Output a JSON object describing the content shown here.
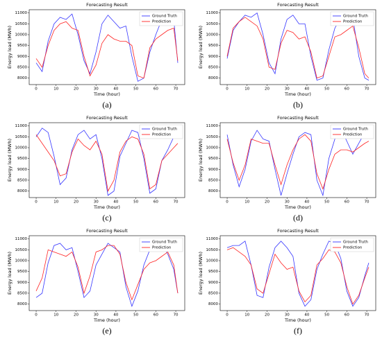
{
  "chart_data": [
    {
      "type": "line",
      "label": "(a)",
      "title": "Forecasting Result",
      "xlabel": "Time (hour)",
      "ylabel": "Energy load (MWh)",
      "x": [
        0,
        3,
        6,
        9,
        12,
        15,
        18,
        21,
        24,
        27,
        30,
        33,
        36,
        39,
        42,
        45,
        48,
        51,
        54,
        57,
        60,
        63,
        66,
        69,
        71
      ],
      "series": [
        {
          "name": "Ground Truth",
          "color": "#3333ff",
          "values": [
            8700,
            8300,
            9700,
            10500,
            10800,
            10700,
            10950,
            10000,
            8800,
            8200,
            9200,
            10500,
            10900,
            10600,
            10300,
            10400,
            9000,
            7850,
            8000,
            9200,
            10000,
            10700,
            10700,
            10700,
            8700
          ]
        },
        {
          "name": "Prediction",
          "color": "#ff2222",
          "values": [
            8900,
            8500,
            9500,
            10200,
            10500,
            10600,
            10300,
            10200,
            9000,
            8100,
            8600,
            9600,
            10000,
            9800,
            9700,
            9700,
            9500,
            8100,
            8000,
            9400,
            9800,
            10000,
            10200,
            10300,
            8800
          ]
        }
      ],
      "xlim": [
        -3.5,
        74.5
      ],
      "xticks": [
        0,
        10,
        20,
        30,
        40,
        50,
        60,
        70
      ],
      "ylim": [
        7700,
        11150
      ],
      "yticks": [
        8000,
        8500,
        9000,
        9500,
        10000,
        10500,
        11000
      ],
      "legend": "upper right"
    },
    {
      "type": "line",
      "label": "(b)",
      "title": "Forecasting Result",
      "xlabel": "Time (hour)",
      "ylabel": "Energy load (MWh)",
      "x": [
        0,
        3,
        6,
        9,
        12,
        15,
        18,
        21,
        24,
        27,
        30,
        33,
        36,
        39,
        42,
        45,
        48,
        51,
        54,
        57,
        60,
        63,
        66,
        69,
        71
      ],
      "series": [
        {
          "name": "Ground Truth",
          "color": "#3333ff",
          "values": [
            8900,
            10200,
            10600,
            10900,
            10800,
            11000,
            10000,
            8700,
            8200,
            9800,
            10700,
            10900,
            10500,
            10500,
            9000,
            7900,
            8000,
            9300,
            10300,
            10800,
            10700,
            10800,
            9000,
            8000,
            7900
          ]
        },
        {
          "name": "Prediction",
          "color": "#ff2222",
          "values": [
            9000,
            10300,
            10600,
            10800,
            10600,
            10400,
            9800,
            8500,
            8400,
            9600,
            10200,
            10100,
            9800,
            9900,
            9200,
            8000,
            8100,
            9000,
            9900,
            10000,
            10200,
            10400,
            9400,
            8200,
            8000
          ]
        }
      ],
      "xlim": [
        -3.5,
        74.5
      ],
      "xticks": [
        0,
        10,
        20,
        30,
        40,
        50,
        60,
        70
      ],
      "ylim": [
        7700,
        11150
      ],
      "yticks": [
        8000,
        8500,
        9000,
        9500,
        10000,
        10500,
        11000
      ],
      "legend": "upper right"
    },
    {
      "type": "line",
      "label": "(c)",
      "title": "Forecasting Result",
      "xlabel": "Time (hour)",
      "ylabel": "Energy load (MWh)",
      "x": [
        0,
        3,
        6,
        9,
        12,
        15,
        18,
        21,
        24,
        27,
        30,
        33,
        36,
        39,
        42,
        45,
        48,
        51,
        54,
        57,
        60,
        63,
        66,
        69,
        71
      ],
      "series": [
        {
          "name": "Ground Truth",
          "color": "#3333ff",
          "values": [
            10500,
            10900,
            10700,
            9600,
            8300,
            8600,
            9900,
            10600,
            10800,
            10400,
            10600,
            9500,
            7800,
            8000,
            9600,
            10200,
            10800,
            10700,
            9500,
            7900,
            8100,
            9400,
            9900,
            10500,
            10800
          ]
        },
        {
          "name": "Prediction",
          "color": "#ff2222",
          "values": [
            10600,
            10200,
            9800,
            9400,
            8700,
            8800,
            9800,
            10400,
            10100,
            9900,
            10300,
            9700,
            8000,
            8500,
            9800,
            10300,
            10500,
            10400,
            9700,
            8100,
            8300,
            9400,
            9700,
            10000,
            10200
          ]
        }
      ],
      "xlim": [
        -3.5,
        74.5
      ],
      "xticks": [
        0,
        10,
        20,
        30,
        40,
        50,
        60,
        70
      ],
      "ylim": [
        7700,
        11150
      ],
      "yticks": [
        8000,
        8500,
        9000,
        9500,
        10000,
        10500,
        11000
      ],
      "legend": "upper right"
    },
    {
      "type": "line",
      "label": "(d)",
      "title": "Forecasting Result",
      "xlabel": "Time (hour)",
      "ylabel": "Energy load (MWh)",
      "x": [
        0,
        3,
        6,
        9,
        12,
        15,
        18,
        21,
        24,
        27,
        30,
        33,
        36,
        39,
        42,
        45,
        48,
        51,
        54,
        57,
        60,
        63,
        66,
        69,
        71
      ],
      "series": [
        {
          "name": "Ground Truth",
          "color": "#3333ff",
          "values": [
            10600,
            9200,
            8200,
            9000,
            10300,
            10800,
            10400,
            10300,
            9000,
            7800,
            8800,
            9700,
            10500,
            10700,
            10600,
            8500,
            7800,
            9500,
            10400,
            10900,
            10300,
            9700,
            10200,
            10700,
            10600
          ]
        },
        {
          "name": "Prediction",
          "color": "#ff2222",
          "values": [
            10400,
            9300,
            8500,
            9200,
            10400,
            10300,
            10200,
            10200,
            9200,
            8300,
            9200,
            9900,
            10400,
            10600,
            10300,
            8800,
            8100,
            9000,
            9700,
            9900,
            9900,
            9800,
            10000,
            10200,
            10300
          ]
        }
      ],
      "xlim": [
        -3.5,
        74.5
      ],
      "xticks": [
        0,
        10,
        20,
        30,
        40,
        50,
        60,
        70
      ],
      "ylim": [
        7700,
        11150
      ],
      "yticks": [
        8000,
        8500,
        9000,
        9500,
        10000,
        10500,
        11000
      ],
      "legend": "upper right"
    },
    {
      "type": "line",
      "label": "(e)",
      "title": "Forecasting Result",
      "xlabel": "Time (hour)",
      "ylabel": "Energy load (MWh)",
      "x": [
        0,
        3,
        6,
        9,
        12,
        15,
        18,
        21,
        24,
        27,
        30,
        33,
        36,
        39,
        42,
        45,
        48,
        51,
        54,
        57,
        60,
        63,
        66,
        69,
        71
      ],
      "series": [
        {
          "name": "Ground Truth",
          "color": "#3333ff",
          "values": [
            8300,
            8500,
            9900,
            10700,
            10800,
            10500,
            10600,
            9500,
            8300,
            8600,
            9800,
            10300,
            10800,
            10600,
            10400,
            8800,
            7900,
            8600,
            9800,
            10500,
            11000,
            10800,
            10300,
            9600,
            8500
          ]
        },
        {
          "name": "Prediction",
          "color": "#ff2222",
          "values": [
            8600,
            9200,
            10500,
            10400,
            10300,
            10200,
            10400,
            9700,
            8500,
            9300,
            10400,
            10500,
            10700,
            10700,
            10300,
            9000,
            8200,
            8900,
            9600,
            9900,
            10000,
            10200,
            10400,
            9800,
            8500
          ]
        }
      ],
      "xlim": [
        -3.5,
        74.5
      ],
      "xticks": [
        0,
        10,
        20,
        30,
        40,
        50,
        60,
        70
      ],
      "ylim": [
        7700,
        11150
      ],
      "yticks": [
        8000,
        8500,
        9000,
        9500,
        10000,
        10500,
        11000
      ],
      "legend": "upper right"
    },
    {
      "type": "line",
      "label": "(f)",
      "title": "Forecasting Result",
      "xlabel": "Time (hour)",
      "ylabel": "Energy load (MWh)",
      "x": [
        0,
        3,
        6,
        9,
        12,
        15,
        18,
        21,
        24,
        27,
        30,
        33,
        36,
        39,
        42,
        45,
        48,
        51,
        54,
        57,
        60,
        63,
        66,
        69,
        71
      ],
      "series": [
        {
          "name": "Ground Truth",
          "color": "#3333ff",
          "values": [
            10600,
            10700,
            10700,
            10900,
            9800,
            8400,
            8300,
            9700,
            10600,
            10900,
            10600,
            10200,
            8500,
            7900,
            8200,
            9600,
            10300,
            10900,
            10800,
            10100,
            8600,
            7900,
            8300,
            9300,
            9900
          ]
        },
        {
          "name": "Prediction",
          "color": "#ff2222",
          "values": [
            10500,
            10600,
            10400,
            10200,
            9800,
            8700,
            8500,
            9400,
            10300,
            9900,
            9600,
            9700,
            8600,
            8100,
            8400,
            9800,
            10100,
            10500,
            10400,
            9900,
            8800,
            8000,
            8400,
            9200,
            9700
          ]
        }
      ],
      "xlim": [
        -3.5,
        74.5
      ],
      "xticks": [
        0,
        10,
        20,
        30,
        40,
        50,
        60,
        70
      ],
      "ylim": [
        7700,
        11150
      ],
      "yticks": [
        8000,
        8500,
        9000,
        9500,
        10000,
        10500,
        11000
      ],
      "legend": "upper right"
    }
  ]
}
